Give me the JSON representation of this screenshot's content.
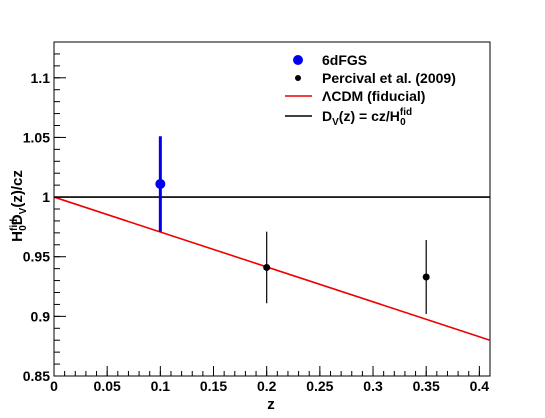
{
  "chart_data": {
    "type": "scatter",
    "xlabel": "z",
    "ylabel_parts": {
      "h": "H",
      "sub0": "0",
      "sup": "fid",
      "d": "D",
      "subv": "V",
      "rest": "(z)/cz"
    },
    "xlim": [
      0,
      0.41
    ],
    "ylim": [
      0.85,
      1.13
    ],
    "x_ticks": [
      0,
      0.05,
      0.1,
      0.15,
      0.2,
      0.25,
      0.3,
      0.35,
      0.4
    ],
    "x_tick_labels": [
      "0",
      "0.05",
      "0.1",
      "0.15",
      "0.2",
      "0.25",
      "0.3",
      "0.35",
      "0.4"
    ],
    "y_ticks": [
      0.85,
      0.9,
      0.95,
      1.0,
      1.05,
      1.1
    ],
    "y_tick_labels": [
      "0.85",
      "0.9",
      "0.95",
      "1",
      "1.05",
      "1.1"
    ],
    "x_minor_step": 0.01,
    "y_minor_step": 0.01,
    "grid": false,
    "legend_position": "top-right",
    "series": [
      {
        "name": "6dFGS",
        "kind": "points",
        "color": "#0000ee",
        "marker": "circle-large",
        "points": [
          {
            "x": 0.1,
            "y": 1.011,
            "err": 0.04
          }
        ]
      },
      {
        "name": "Percival et al. (2009)",
        "kind": "points",
        "color": "#000000",
        "marker": "circle-small",
        "points": [
          {
            "x": 0.2,
            "y": 0.941,
            "err": 0.03
          },
          {
            "x": 0.35,
            "y": 0.933,
            "err": 0.031
          }
        ]
      },
      {
        "name": "ΛCDM (fiducial)",
        "kind": "line",
        "color": "#ee0000",
        "points": [
          {
            "x": 0,
            "y": 1.0
          },
          {
            "x": 0.41,
            "y": 0.88
          }
        ]
      },
      {
        "name_parts": {
          "d": "D",
          "subv": "V",
          "mid": "(z) = cz/H",
          "sub0": "0",
          "sup": "fid"
        },
        "kind": "line",
        "color": "#000000",
        "points": [
          {
            "x": 0,
            "y": 1.0
          },
          {
            "x": 0.41,
            "y": 1.0
          }
        ]
      }
    ]
  }
}
